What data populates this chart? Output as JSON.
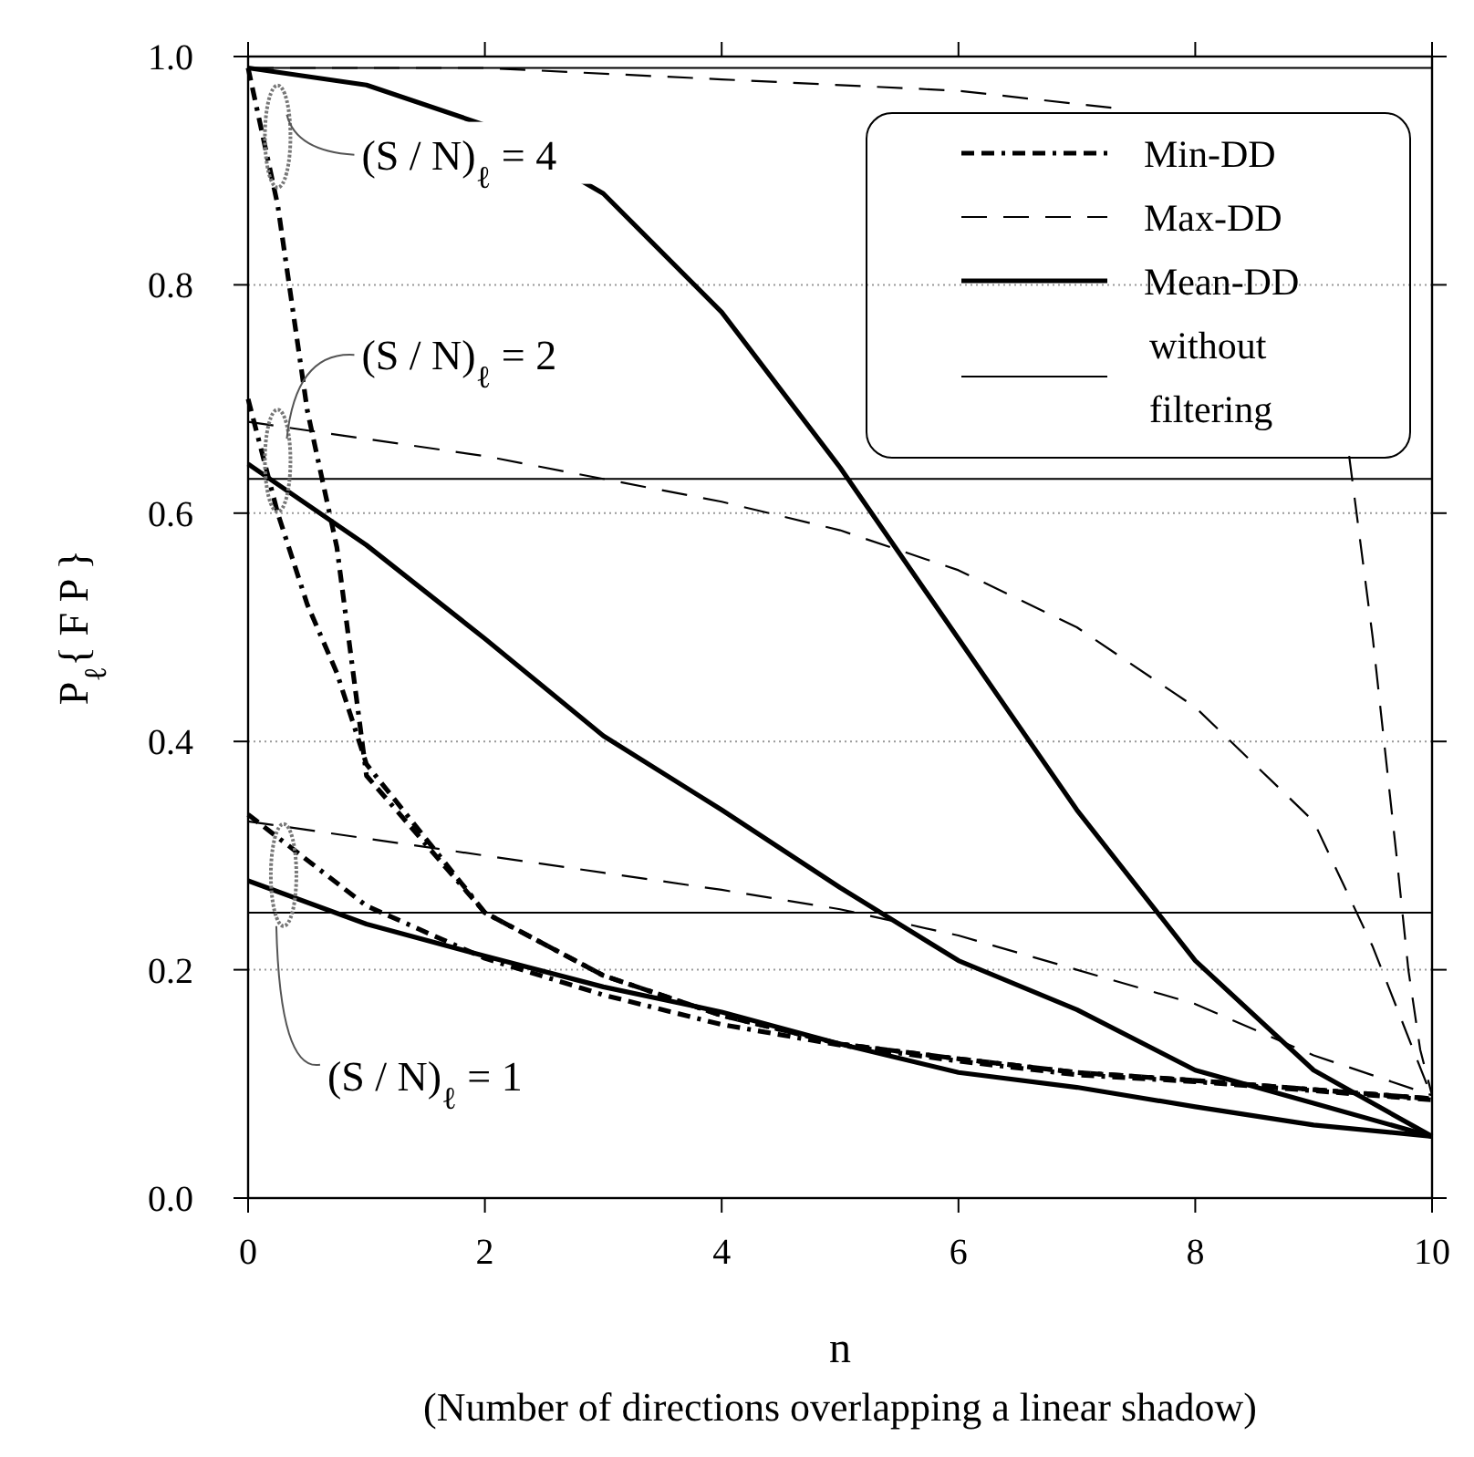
{
  "chart_data": {
    "type": "line",
    "xlabel": "n\n(Number of directions overlapping a linear shadow)",
    "ylabel": "P$_{ℓ}${ F P }",
    "xlim": [
      0,
      10
    ],
    "xticks": [
      0,
      2,
      4,
      6,
      8,
      10
    ],
    "ylim": [
      0,
      1
    ],
    "yticks": [
      {
        "value": 0,
        "label": "0.0"
      },
      0.2,
      0.4,
      0.6,
      0.8,
      {
        "value": 1,
        "label": "1.0"
      }
    ],
    "grid": "y",
    "legend": "top right",
    "series": [
      {
        "name": "Min-DD",
        "color": "#000000",
        "line_style": "dashdot",
        "x": [
          0,
          0.25,
          0.5,
          0.75,
          1,
          2,
          3,
          4,
          5,
          6,
          7,
          8,
          9,
          10
        ],
        "values": [
          0.99,
          0.87,
          0.69,
          0.57,
          0.37,
          0.25,
          0.195,
          0.16,
          0.135,
          0.122,
          0.11,
          0.103,
          0.095,
          0.087
        ]
      },
      {
        "color": "#000000",
        "line_style": "dashdot",
        "x": [
          0,
          0.25,
          0.5,
          0.75,
          1,
          2,
          3,
          4,
          5,
          6,
          7,
          8,
          9,
          10
        ],
        "values": [
          0.7,
          0.6,
          0.52,
          0.46,
          0.38,
          0.25,
          0.195,
          0.16,
          0.135,
          0.122,
          0.11,
          0.103,
          0.095,
          0.087
        ]
      },
      {
        "color": "#000000",
        "line_style": "dashdot",
        "x": [
          0,
          1,
          2,
          3,
          4,
          5,
          6,
          7,
          8,
          9,
          10
        ],
        "values": [
          0.336,
          0.256,
          0.21,
          0.178,
          0.152,
          0.134,
          0.12,
          0.108,
          0.102,
          0.094,
          0.086
        ]
      },
      {
        "name": "Max-DD",
        "color": "#000000",
        "line_style": "dashed",
        "x": [
          0,
          2,
          4,
          6,
          7.3,
          8,
          9.3,
          9.5,
          9.7,
          9.8,
          9.9,
          10
        ],
        "values": [
          0.99,
          0.99,
          0.98,
          0.97,
          0.955,
          null,
          0.65,
          0.49,
          0.3,
          0.2,
          0.13,
          0.09
        ]
      },
      {
        "color": "#000000",
        "line_style": "dashed",
        "x": [
          0,
          1,
          2,
          3,
          4,
          5,
          6,
          7,
          8,
          9,
          9.5,
          10
        ],
        "values": [
          0.68,
          0.665,
          0.65,
          0.63,
          0.61,
          0.585,
          0.55,
          0.5,
          0.43,
          0.33,
          0.22,
          0.088
        ]
      },
      {
        "color": "#000000",
        "line_style": "dashed",
        "x": [
          0,
          1,
          2,
          3,
          4,
          5,
          6,
          7,
          8,
          9,
          10
        ],
        "values": [
          0.33,
          0.315,
          0.3,
          0.285,
          0.27,
          0.253,
          0.23,
          0.2,
          0.17,
          0.125,
          0.09
        ]
      },
      {
        "name": "Mean-DD",
        "color": "#000000",
        "line_style": "solid",
        "x": [
          0,
          1,
          2,
          3,
          4,
          5,
          6,
          7,
          8,
          9,
          10
        ],
        "values": [
          0.99,
          0.975,
          0.94,
          0.88,
          0.776,
          0.64,
          0.49,
          0.34,
          0.208,
          0.112,
          0.054
        ]
      },
      {
        "color": "#000000",
        "line_style": "solid",
        "x": [
          0,
          1,
          2,
          3,
          4,
          5,
          6,
          7,
          8,
          9,
          10
        ],
        "values": [
          0.643,
          0.572,
          0.49,
          0.405,
          0.34,
          0.272,
          0.208,
          0.165,
          0.112,
          0.083,
          0.054
        ]
      },
      {
        "color": "#000000",
        "line_style": "solid",
        "x": [
          0,
          1,
          2,
          3,
          4,
          5,
          6,
          7,
          8,
          9,
          10
        ],
        "values": [
          0.278,
          0.24,
          0.212,
          0.185,
          0.163,
          0.135,
          0.11,
          0.097,
          0.08,
          0.064,
          0.054
        ]
      }
    ],
    "ref_lines": [
      {
        "axis": "y",
        "value": 0.99,
        "label": "without filtering",
        "color": "#000000",
        "line_style": "solid"
      },
      {
        "axis": "y",
        "value": 0.63,
        "color": "#000000",
        "line_style": "solid"
      },
      {
        "axis": "y",
        "value": 0.25,
        "color": "#000000",
        "line_style": "solid"
      }
    ],
    "annotations": [
      "(S / N)$_{ℓ}$ = 4",
      "(S / N)$_{ℓ}$ = 2",
      "(S / N)$_{ℓ}$ = 1"
    ]
  }
}
